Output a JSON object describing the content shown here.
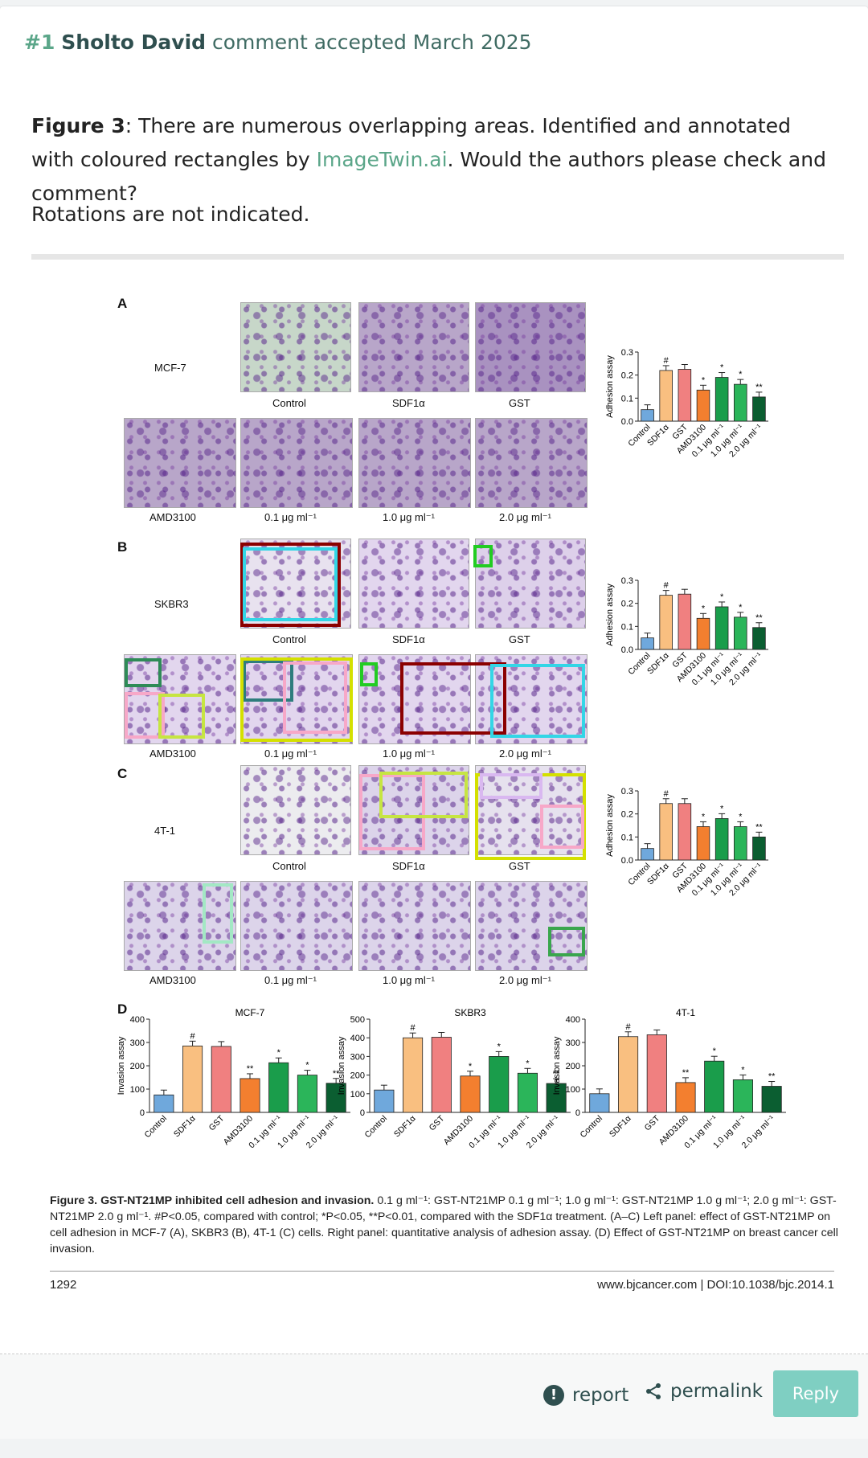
{
  "comment": {
    "number": "#1",
    "author": "Sholto David",
    "status": "comment accepted March 2025",
    "paragraph1_bold": "Figure 3",
    "paragraph1_a": ": There are numerous overlapping areas. Identified and annotated with coloured rectangles by ",
    "paragraph1_link": "ImageTwin.ai",
    "paragraph1_b": ". Would the authors please check and comment?",
    "paragraph2": "Rotations are not indicated."
  },
  "figure": {
    "panels": {
      "A": "A",
      "B": "B",
      "C": "C",
      "D": "D"
    },
    "cell_lines": {
      "A": "MCF-7",
      "B": "SKBR3",
      "C": "4T-1"
    },
    "top_labels": [
      "Control",
      "SDF1α",
      "GST"
    ],
    "bottom_labels": [
      "AMD3100",
      "0.1 μg ml⁻¹",
      "1.0 μg ml⁻¹",
      "2.0 μg ml⁻¹"
    ],
    "caption_bold": "Figure 3. GST-NT21MP inhibited cell adhesion and invasion.",
    "caption_rest": " 0.1 g ml⁻¹: GST-NT21MP 0.1 g ml⁻¹; 1.0 g ml⁻¹: GST-NT21MP 1.0 g ml⁻¹; 2.0 g ml⁻¹: GST-NT21MP 2.0 g ml⁻¹. #P<0.05, compared with control; *P<0.05, **P<0.01, compared with the SDF1α treatment. (A–C) Left panel: effect of GST-NT21MP on cell adhesion in MCF-7 (A), SKBR3 (B), 4T-1 (C) cells. Right panel: quantitative analysis of adhesion assay. (D) Effect of GST-NT21MP on breast cancer cell invasion.",
    "page_number": "1292",
    "doi": "www.bjcancer.com | DOI:10.1038/bjc.2014.1"
  },
  "chart_data": [
    {
      "type": "bar",
      "ylabel": "Adhesion assay",
      "ylim": [
        0,
        0.3
      ],
      "yticks": [
        "0.0",
        "0.1",
        "0.2",
        "0.3"
      ],
      "categories": [
        "Control",
        "SDF1α",
        "GST",
        "AMD3100",
        "0.1 μg ml⁻¹",
        "1.0 μg ml⁻¹",
        "2.0 μg ml⁻¹"
      ],
      "values": [
        0.05,
        0.22,
        0.225,
        0.135,
        0.19,
        0.16,
        0.105
      ],
      "marks": [
        "",
        "#",
        "",
        "*",
        "*",
        "*",
        "**"
      ]
    },
    {
      "type": "bar",
      "ylabel": "Adhesion assay",
      "ylim": [
        0,
        0.3
      ],
      "yticks": [
        "0.0",
        "0.1",
        "0.2",
        "0.3"
      ],
      "categories": [
        "Control",
        "SDF1α",
        "GST",
        "AMD3100",
        "0.1 μg ml⁻¹",
        "1.0 μg ml⁻¹",
        "2.0 μg ml⁻¹"
      ],
      "values": [
        0.05,
        0.235,
        0.24,
        0.135,
        0.185,
        0.14,
        0.095
      ],
      "marks": [
        "",
        "#",
        "",
        "*",
        "*",
        "*",
        "**"
      ]
    },
    {
      "type": "bar",
      "ylabel": "Adhesion assay",
      "ylim": [
        0,
        0.3
      ],
      "yticks": [
        "0.0",
        "0.1",
        "0.2",
        "0.3"
      ],
      "categories": [
        "Control",
        "SDF1α",
        "GST",
        "AMD3100",
        "0.1 μg ml⁻¹",
        "1.0 μg ml⁻¹",
        "2.0 μg ml⁻¹"
      ],
      "values": [
        0.05,
        0.245,
        0.245,
        0.145,
        0.18,
        0.145,
        0.1
      ],
      "marks": [
        "",
        "#",
        "",
        "*",
        "*",
        "*",
        "**"
      ]
    },
    {
      "type": "bar",
      "title": "MCF-7",
      "ylabel": "Invasion assay",
      "ylim": [
        0,
        400
      ],
      "yticks": [
        "0",
        "100",
        "200",
        "300",
        "400"
      ],
      "categories": [
        "Control",
        "SDF1α",
        "GST",
        "AMD3100",
        "0.1 μg ml⁻¹",
        "1.0 μg ml⁻¹",
        "2.0 μg ml⁻¹"
      ],
      "values": [
        75,
        285,
        283,
        145,
        213,
        160,
        125
      ],
      "marks": [
        "",
        "#",
        "",
        "**",
        "*",
        "*",
        "**"
      ]
    },
    {
      "type": "bar",
      "title": "SKBR3",
      "ylabel": "Invasion assay",
      "ylim": [
        0,
        500
      ],
      "yticks": [
        "0",
        "100",
        "200",
        "300",
        "400",
        "500"
      ],
      "categories": [
        "Control",
        "SDF1α",
        "GST",
        "AMD3100",
        "0.1 μg ml⁻¹",
        "1.0 μg ml⁻¹",
        "2.0 μg ml⁻¹"
      ],
      "values": [
        120,
        400,
        403,
        195,
        300,
        210,
        155
      ],
      "marks": [
        "",
        "#",
        "",
        "*",
        "*",
        "*",
        "**"
      ]
    },
    {
      "type": "bar",
      "title": "4T-1",
      "ylabel": "Invasion assay",
      "ylim": [
        0,
        400
      ],
      "yticks": [
        "0",
        "100",
        "200",
        "300",
        "400"
      ],
      "categories": [
        "Control",
        "SDF1α",
        "GST",
        "AMD3100",
        "0.1 μg ml⁻¹",
        "1.0 μg ml⁻¹",
        "2.0 μg ml⁻¹"
      ],
      "values": [
        80,
        325,
        333,
        128,
        220,
        140,
        112
      ],
      "marks": [
        "",
        "#",
        "",
        "**",
        "*",
        "*",
        "**"
      ]
    }
  ],
  "bar_colors": [
    "#6fa8dc",
    "#f9bf80",
    "#f08080",
    "#f37f2f",
    "#1a9d4b",
    "#2bb55a",
    "#0b5e31"
  ],
  "actions": {
    "report": "report",
    "permalink": "permalink",
    "reply": "Reply"
  }
}
